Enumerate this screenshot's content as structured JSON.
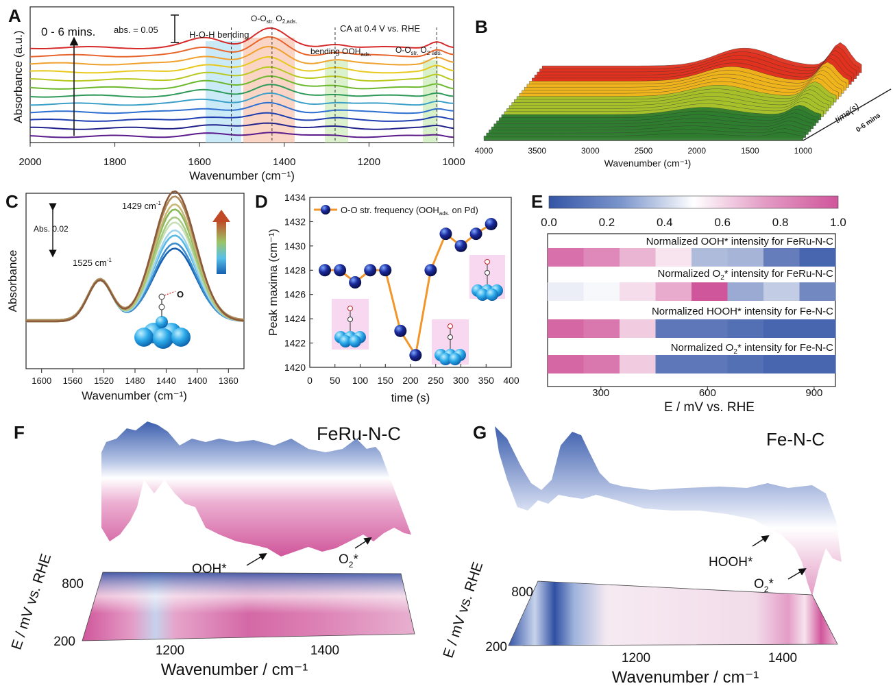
{
  "panels": {
    "A": {
      "label": "A"
    },
    "B": {
      "label": "B"
    },
    "C": {
      "label": "C"
    },
    "D": {
      "label": "D"
    },
    "E": {
      "label": "E"
    },
    "F": {
      "label": "F"
    },
    "G": {
      "label": "G"
    }
  },
  "colors": {
    "blue": "#3455a6",
    "pink": "#d0569b",
    "orange": "#f0962a",
    "navy": "#1a1a8c",
    "spectra": [
      "#5b1a8c",
      "#22228c",
      "#1f3fb0",
      "#2c6fd0",
      "#3ba0c8",
      "#2e9a5a",
      "#6cb82c",
      "#b8c81e",
      "#e8c81c",
      "#f0a02c",
      "#e8642a",
      "#d62a2a"
    ]
  },
  "chart_data": [
    {
      "panel": "A",
      "type": "line",
      "xlabel": "Wavenumber (cm⁻¹)",
      "ylabel": "Absorbance (a.u.)",
      "xlim": [
        2000,
        1000
      ],
      "x_ticks": [
        "2000",
        "1800",
        "1600",
        "1400",
        "1200",
        "1000"
      ],
      "annotations": {
        "time_range": "0 - 6 mins.",
        "scale": "abs. = 0.05",
        "condition": "CA at 0.4 V vs. RHE",
        "band_hoh": "H-O-H bending",
        "band_oo": "O-O",
        "band_oo_sub": "str.",
        "band_oo_o2": "O",
        "band_oo_o2_sub": "2,ads.",
        "band_ooh": "bending OOH",
        "band_ooh_sub": "ads.",
        "band_o2m": "O-O",
        "band_o2m_sub": "str.",
        "band_o2m_o2": "O",
        "band_o2m_sup": "2",
        "band_o2m_tail": "-",
        "band_o2m_sub2": "ads."
      },
      "dashed_lines_at": [
        1525,
        1429,
        1280,
        1040
      ],
      "series_count": 12
    },
    {
      "panel": "B",
      "type": "area",
      "xlabel": "Wavenumber (cm⁻¹)",
      "x_ticks": [
        "4000",
        "3500",
        "3000",
        "2500",
        "2000",
        "1500",
        "1000"
      ],
      "time_axis_label": "time(s)",
      "time_range_label": "0-6 mins"
    },
    {
      "panel": "C",
      "type": "line",
      "xlabel": "Wavenumber (cm⁻¹)",
      "ylabel": "Absorbance",
      "x_ticks": [
        "1600",
        "1560",
        "1520",
        "1480",
        "1440",
        "1400",
        "1360"
      ],
      "annotations": {
        "scale": "Abs. 0.02",
        "peak1": "1429  cm",
        "peak2": "1525  cm",
        "sup": "-1",
        "atom": "O"
      }
    },
    {
      "panel": "D",
      "type": "line",
      "xlabel": "time (s)",
      "ylabel": "Peak maxima (cm⁻¹)",
      "xlim": [
        0,
        400
      ],
      "ylim": [
        1420,
        1434
      ],
      "x_ticks": [
        "0",
        "50",
        "100",
        "150",
        "200",
        "250",
        "300",
        "350",
        "400"
      ],
      "y_ticks": [
        "1420",
        "1422",
        "1424",
        "1426",
        "1428",
        "1430",
        "1432",
        "1434"
      ],
      "legend": "O-O str. frequency (OOH",
      "legend_sub": "ads.",
      "legend_tail": " on Pd)",
      "x": [
        30,
        60,
        90,
        120,
        150,
        180,
        210,
        240,
        270,
        300,
        330,
        360
      ],
      "y": [
        1428,
        1428,
        1427,
        1428,
        1428,
        1423,
        1421,
        1428,
        1431,
        1430,
        1431,
        1431.8
      ]
    },
    {
      "panel": "E",
      "type": "heatmap",
      "xlabel": "E / mV vs. RHE",
      "x_ticks": [
        "300",
        "600",
        "900"
      ],
      "colorbar_ticks": [
        "0.0",
        "0.2",
        "0.4",
        "0.6",
        "0.8",
        "1.0"
      ],
      "rows": [
        {
          "label": "Normalized OOH* intensity for FeRu-N-C",
          "values": [
            0.92,
            0.85,
            0.72,
            0.58,
            0.3,
            0.28,
            0.12,
            0.05
          ]
        },
        {
          "label": "Normalized O",
          "label_sub": "2",
          "label_tail": "* intensity for FeRu-N-C",
          "values": [
            0.45,
            0.48,
            0.6,
            0.75,
            1.0,
            0.25,
            0.35,
            0.15
          ]
        },
        {
          "label": "Normalized HOOH* intensity for Fe-N-C",
          "values": [
            0.95,
            0.9,
            0.65,
            0.1,
            0.1,
            0.08,
            0.05,
            0.05
          ]
        },
        {
          "label": "Normalized O",
          "label_sub": "2",
          "label_tail": "* intensity for Fe-N-C",
          "values": [
            0.95,
            0.9,
            0.65,
            0.1,
            0.1,
            0.08,
            0.05,
            0.05
          ]
        }
      ]
    },
    {
      "panel": "F",
      "type": "heatmap",
      "title": "FeRu-N-C",
      "xlabel": "Wavenumber / cm⁻¹",
      "ylabel": "E / mV vs. RHE",
      "x_ticks": [
        "1200",
        "1400"
      ],
      "y_ticks": [
        "800",
        "200"
      ],
      "annotations": {
        "ooh": "OOH*",
        "o2": "O",
        "o2_sub": "2",
        "o2_tail": "*"
      }
    },
    {
      "panel": "G",
      "type": "heatmap",
      "title": "Fe-N-C",
      "xlabel": "Wavenumber / cm⁻¹",
      "ylabel": "E / mV vs. RHE",
      "x_ticks": [
        "1200",
        "1400"
      ],
      "y_ticks": [
        "800",
        "200"
      ],
      "annotations": {
        "hooh": "HOOH*",
        "o2": "O",
        "o2_sub": "2",
        "o2_tail": "*"
      }
    }
  ]
}
